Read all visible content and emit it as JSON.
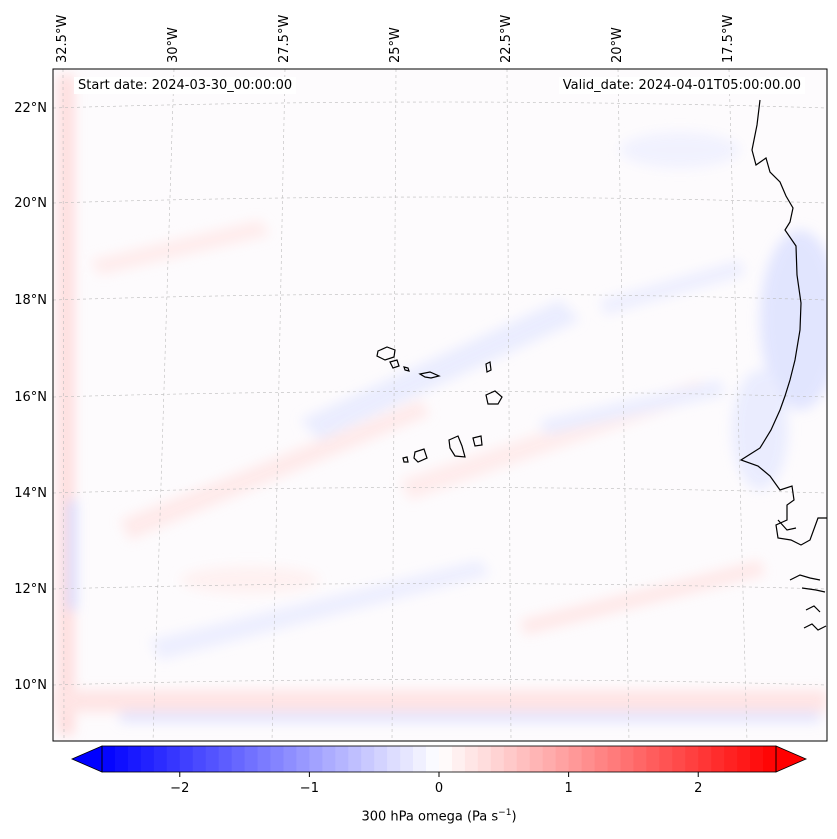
{
  "header": {
    "start_label": "Start date: 2024-03-30_00:00:00",
    "valid_label": "Valid_date: 2024-04-01T05:00:00.00"
  },
  "longitude_labels": [
    "32.5°W",
    "30°W",
    "27.5°W",
    "25°W",
    "22.5°W",
    "20°W",
    "17.5°W"
  ],
  "latitude_labels": [
    "22°N",
    "20°N",
    "18°N",
    "16°N",
    "14°N",
    "12°N",
    "10°N"
  ],
  "colorbar": {
    "ticks": [
      {
        "value": -2,
        "label": "−2"
      },
      {
        "value": -1,
        "label": "−1"
      },
      {
        "value": 0,
        "label": "0"
      },
      {
        "value": 1,
        "label": "1"
      },
      {
        "value": 2,
        "label": "2"
      }
    ],
    "range": [
      -2.6,
      2.6
    ],
    "extend": "both",
    "colormap": "bwr",
    "label_text": "300 hPa omega (Pa s",
    "label_sup": "−1",
    "label_close": ")"
  },
  "colors": {
    "negative": "#0000ff",
    "neutral": "#ffffff",
    "positive": "#ff0000",
    "coast": "#000000",
    "grid": "#bbbbbb"
  }
}
